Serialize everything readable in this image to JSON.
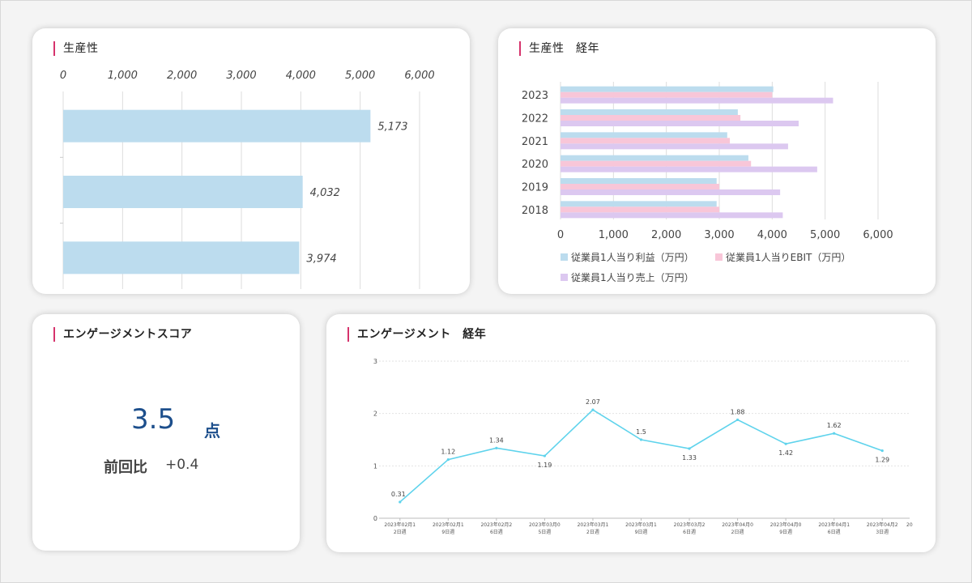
{
  "cards": {
    "productivity": {
      "title": "生産性"
    },
    "productivity_yearly": {
      "title": "生産性　経年"
    },
    "engagement_score": {
      "title": "エンゲージメントスコア",
      "value": "3.5",
      "unit": "点",
      "delta_label": "前回比",
      "delta_value": "+0.4"
    },
    "engagement_trend": {
      "title": "エンゲージメント　経年"
    }
  },
  "chart_data": [
    {
      "id": "productivity",
      "type": "bar",
      "orientation": "horizontal",
      "axis_position": "top",
      "xlim": [
        0,
        6000
      ],
      "ticks": [
        "0",
        "1,000",
        "2,000",
        "3,000",
        "4,000",
        "5,000",
        "6,000"
      ],
      "values": [
        5173,
        4032,
        3974
      ],
      "value_labels": [
        "5,173",
        "4,032",
        "3,974"
      ],
      "color": "#bcdcee"
    },
    {
      "id": "productivity_yearly",
      "type": "bar",
      "orientation": "horizontal",
      "categories": [
        "2023",
        "2022",
        "2021",
        "2020",
        "2019",
        "2018"
      ],
      "xlim": [
        0,
        6000
      ],
      "ticks": [
        "0",
        "1,000",
        "2,000",
        "3,000",
        "4,000",
        "5,000",
        "6,000"
      ],
      "series": [
        {
          "name": "従業員1人当り利益（万円）",
          "color": "#bcdcee",
          "values": [
            4020,
            3350,
            3150,
            3550,
            2950,
            2950
          ]
        },
        {
          "name": "従業員1人当りEBIT（万円）",
          "color": "#f8c6d8",
          "values": [
            4000,
            3400,
            3200,
            3600,
            3000,
            3000
          ]
        },
        {
          "name": "従業員1人当り売上（万円）",
          "color": "#dcc8f0",
          "values": [
            5150,
            4500,
            4300,
            4850,
            4150,
            4200
          ]
        }
      ],
      "legend_position": "bottom"
    },
    {
      "id": "engagement_trend",
      "type": "line",
      "ylim": [
        0,
        3
      ],
      "yticks": [
        "0",
        "1",
        "2",
        "3"
      ],
      "x_labels": [
        [
          "2023年02月1",
          "2日週"
        ],
        [
          "2023年02月1",
          "9日週"
        ],
        [
          "2023年02月2",
          "6日週"
        ],
        [
          "2023年03月0",
          "5日週"
        ],
        [
          "2023年03月1",
          "2日週"
        ],
        [
          "2023年03月1",
          "9日週"
        ],
        [
          "2023年03月2",
          "6日週"
        ],
        [
          "2023年04月0",
          "2日週"
        ],
        [
          "2023年04月0",
          "9日週"
        ],
        [
          "2023年04月1",
          "6日週"
        ],
        [
          "2023年04月2",
          "3日週"
        ]
      ],
      "x_label_tail": "20",
      "values": [
        0.31,
        1.12,
        1.34,
        1.19,
        2.07,
        1.5,
        1.33,
        1.88,
        1.42,
        1.62,
        1.29
      ],
      "value_labels": [
        "0.31",
        "1.12",
        "1.34",
        "1.19",
        "2.07",
        "1.5",
        "1.33",
        "1.88",
        "1.42",
        "1.62",
        "1.29"
      ],
      "color": "#5fd3ec"
    }
  ]
}
